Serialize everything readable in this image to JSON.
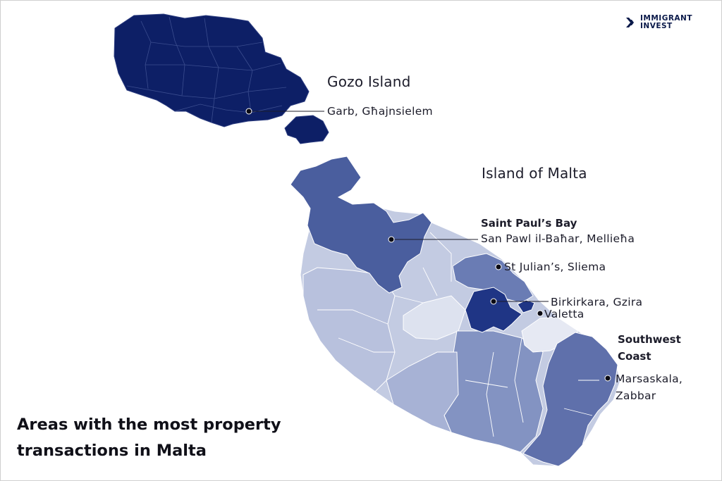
{
  "brand": {
    "line1": "IMMIGRANT",
    "line2": "INVEST",
    "icon": "chevron-double-right-icon"
  },
  "caption": {
    "line1": "Areas with the most property",
    "line2": "transactions in Malta"
  },
  "islands": {
    "gozo": "Gozo Island",
    "malta": "Island of Malta"
  },
  "places": {
    "gozo_marker": "Garb, Għajnsielem",
    "spb_title": "Saint Paul’s Bay",
    "spb_names": "San Pawl il-Baħar, Mellieħa",
    "st_julians": "St Julian’s, Sliema",
    "birkirkara": "Birkirkara, Gzira",
    "valetta": "Valetta",
    "southwest_title_1": "Southwest",
    "southwest_title_2": "Coast",
    "marsaskala_1": "Marsaskala,",
    "marsaskala_2": "Zabbar"
  },
  "colors": {
    "darkest": "#0d1f66",
    "dark": "#4a5e9e",
    "medium": "#8393c2",
    "light": "#b8c1dd",
    "lightest": "#dde2ef",
    "text": "#1c1c2a"
  }
}
